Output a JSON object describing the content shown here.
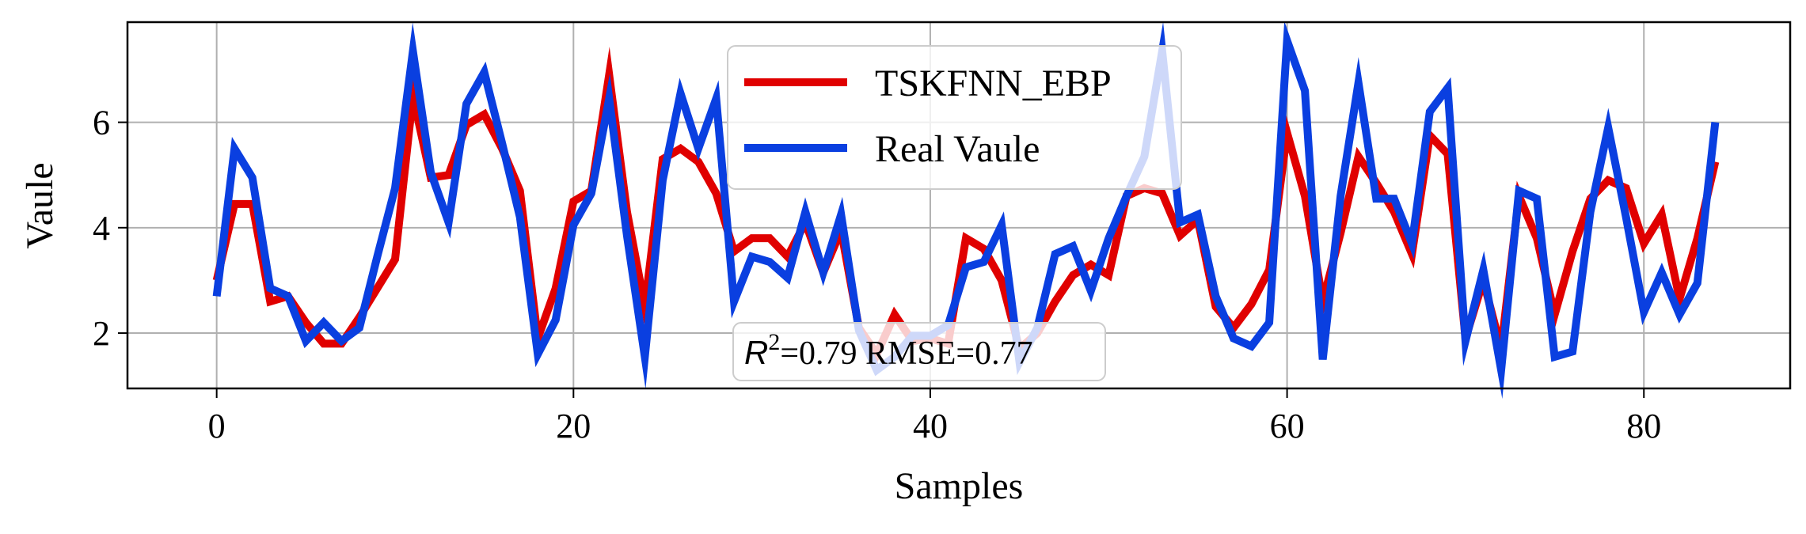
{
  "chart_data": {
    "type": "line",
    "xlabel": "Samples",
    "ylabel": "Vaule",
    "xlim": [
      -5,
      88.2
    ],
    "ylim": [
      0.95,
      7.9
    ],
    "xticks": [
      0,
      20,
      40,
      60,
      80
    ],
    "yticks": [
      2,
      4,
      6
    ],
    "grid": true,
    "legend_position": "upper center",
    "annotation": {
      "r2_symbol": "R",
      "r2_sup": "2",
      "text": "=0.79 RMSE=0.77"
    },
    "series": [
      {
        "name": "TSKFNN_EBP",
        "color": "#e00000",
        "values": [
          3.0,
          4.45,
          4.45,
          2.6,
          2.7,
          2.2,
          1.8,
          1.8,
          2.3,
          2.85,
          3.4,
          6.5,
          4.95,
          5.0,
          5.95,
          6.15,
          5.5,
          4.7,
          1.9,
          2.85,
          4.5,
          4.7,
          6.9,
          4.3,
          2.5,
          5.3,
          5.5,
          5.25,
          4.65,
          3.55,
          3.8,
          3.8,
          3.45,
          4.1,
          3.15,
          3.95,
          2.1,
          1.6,
          2.35,
          1.85,
          1.9,
          1.8,
          3.8,
          3.6,
          3.0,
          1.7,
          2.0,
          2.6,
          3.1,
          3.3,
          3.1,
          4.6,
          4.75,
          4.65,
          3.85,
          4.15,
          2.5,
          2.1,
          2.55,
          3.2,
          5.8,
          4.6,
          2.6,
          3.9,
          5.35,
          4.85,
          4.3,
          3.5,
          5.75,
          5.4,
          1.9,
          3.0,
          1.7,
          4.6,
          3.8,
          2.35,
          3.55,
          4.55,
          4.9,
          4.75,
          3.7,
          4.25,
          2.65,
          3.8,
          5.25
        ]
      },
      {
        "name": "Real Vaule",
        "color": "#0a3fe0",
        "values": [
          2.7,
          5.5,
          4.95,
          2.85,
          2.7,
          1.85,
          2.2,
          1.85,
          2.1,
          3.45,
          4.75,
          7.35,
          5.05,
          4.1,
          6.35,
          6.95,
          5.6,
          4.2,
          1.6,
          2.25,
          4.05,
          4.65,
          6.45,
          3.85,
          1.55,
          4.9,
          6.55,
          5.5,
          6.45,
          2.6,
          3.45,
          3.35,
          3.05,
          4.3,
          3.15,
          4.25,
          2.05,
          1.3,
          1.55,
          1.95,
          1.95,
          2.15,
          3.25,
          3.35,
          4.05,
          1.45,
          2.1,
          3.5,
          3.65,
          2.8,
          3.8,
          4.6,
          5.35,
          7.35,
          4.1,
          4.25,
          2.7,
          1.9,
          1.75,
          2.2,
          7.55,
          6.6,
          1.5,
          4.6,
          6.75,
          4.55,
          4.55,
          3.7,
          6.2,
          6.65,
          1.85,
          3.2,
          1.3,
          4.7,
          4.55,
          1.55,
          1.65,
          4.3,
          5.9,
          4.2,
          2.4,
          3.15,
          2.35,
          2.95,
          6.0
        ]
      }
    ]
  }
}
